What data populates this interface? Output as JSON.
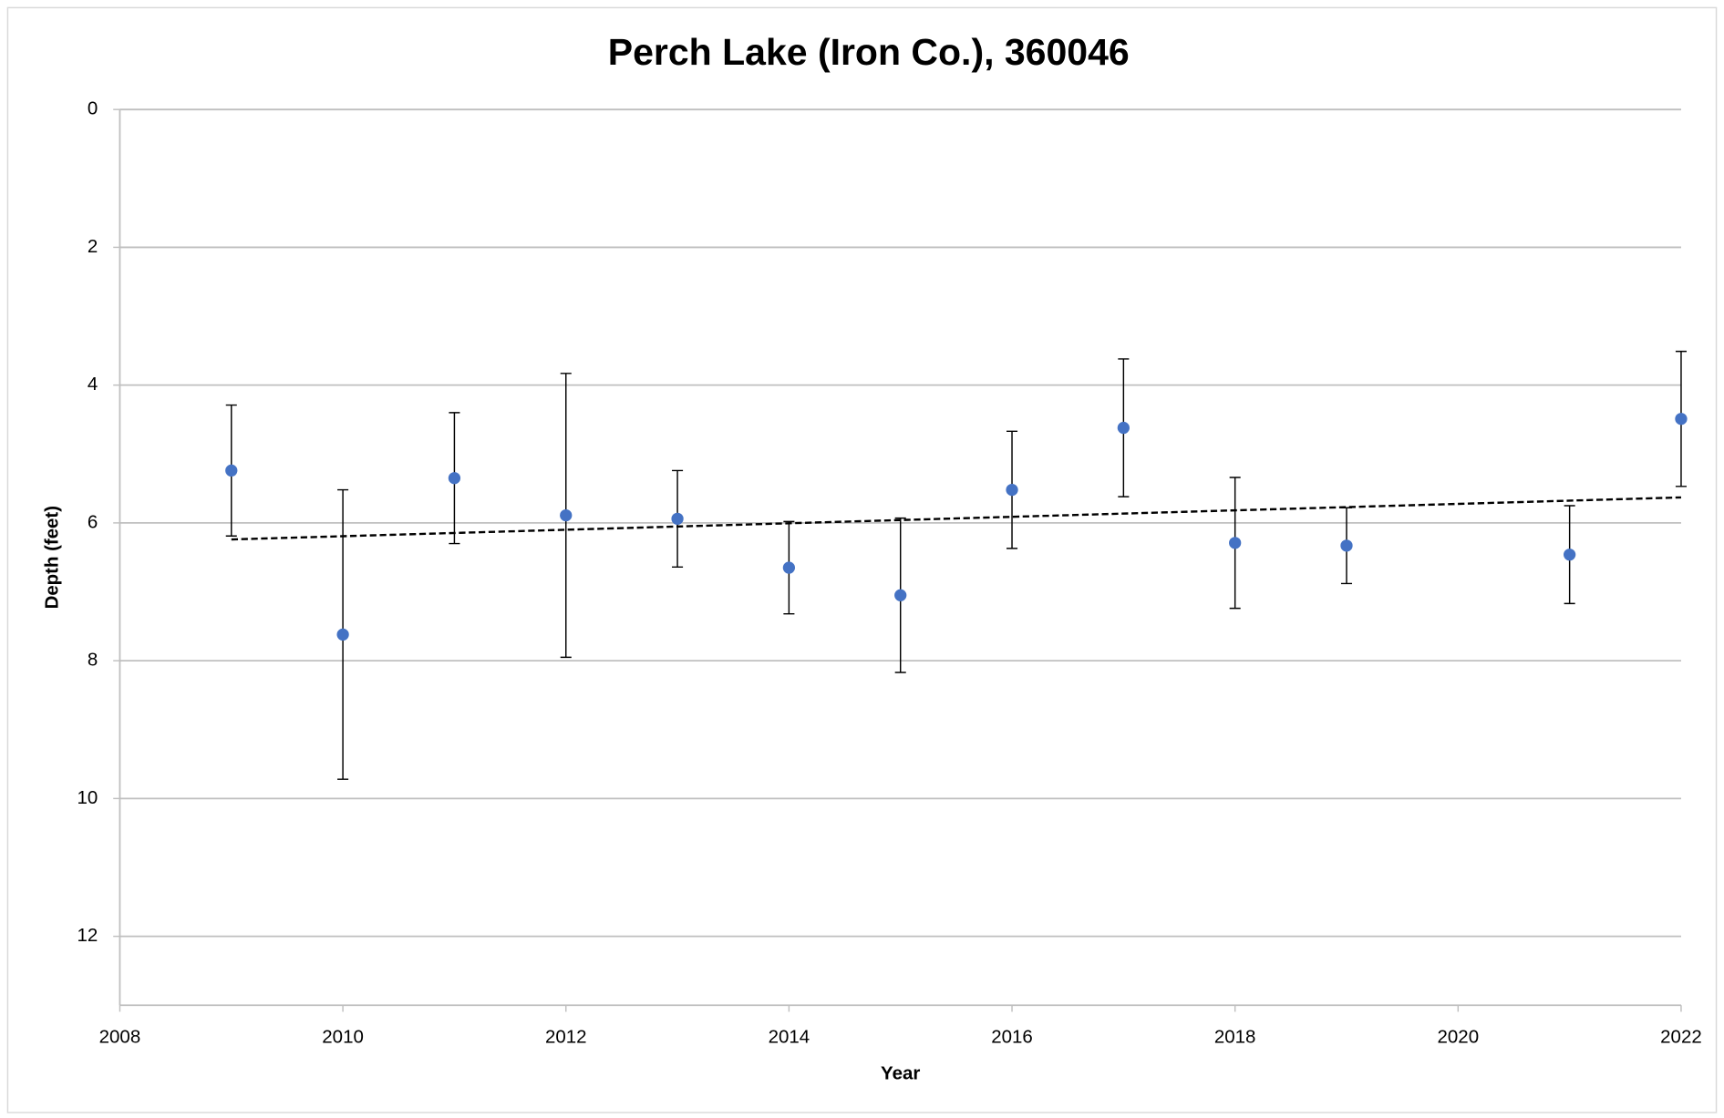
{
  "chart_data": {
    "type": "scatter",
    "title": "Perch Lake (Iron Co.), 360046",
    "xlabel": "Year",
    "ylabel": "Depth (feet)",
    "x": [
      2009,
      2010,
      2011,
      2012,
      2013,
      2014,
      2015,
      2016,
      2017,
      2018,
      2019,
      2021,
      2022
    ],
    "values": [
      5.24,
      7.62,
      5.35,
      5.89,
      5.94,
      6.65,
      7.05,
      5.52,
      4.62,
      6.29,
      6.33,
      6.46,
      4.49
    ],
    "errors": [
      0.95,
      2.1,
      0.95,
      2.06,
      0.7,
      0.67,
      1.12,
      0.85,
      1.0,
      0.95,
      0.55,
      0.71,
      0.98
    ],
    "color": "#4472c4",
    "error_color": "#000000",
    "trendline": {
      "x": [
        2009,
        2022
      ],
      "values": [
        6.24,
        5.63
      ],
      "color": "#000000",
      "style": "dashed"
    },
    "xlim": [
      2008,
      2022
    ],
    "xticks": [
      2008,
      2010,
      2012,
      2014,
      2016,
      2018,
      2020,
      2022
    ],
    "ylim": [
      0,
      13
    ],
    "yticks": [
      0,
      2,
      4,
      6,
      8,
      10,
      12
    ],
    "y_inverted": true,
    "grid": true
  }
}
